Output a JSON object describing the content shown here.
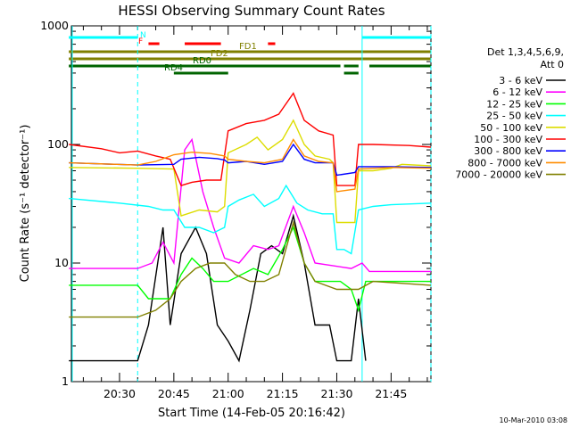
{
  "chart_data": {
    "type": "line",
    "title": "HESSI Observing Summary Count Rates",
    "xlabel": "Start Time (14-Feb-05 20:16:42)",
    "ylabel": "Count Rate (s⁻¹ detector⁻¹)",
    "yscale": "log",
    "ylim": [
      1,
      1000
    ],
    "xlim": [
      "20:16:42",
      "21:56:00"
    ],
    "x_ticks": [
      "20:30",
      "20:45",
      "21:00",
      "21:15",
      "21:30",
      "21:45"
    ],
    "y_ticks": [
      "1",
      "10",
      "100",
      "1000"
    ],
    "legend_placement": "right",
    "legend_header": [
      "Det 1,3,4,5,6,9,",
      "Att 0"
    ],
    "grid": false,
    "footer": "10-Mar-2010 03:08",
    "series": [
      {
        "name": "3 - 6 keV",
        "color": "#000000",
        "points": [
          [
            "20:16",
            1.5
          ],
          [
            "20:35",
            1.5
          ],
          [
            "20:38",
            3
          ],
          [
            "20:42",
            20
          ],
          [
            "20:44",
            3
          ],
          [
            "20:47",
            12
          ],
          [
            "20:51",
            20
          ],
          [
            "20:54",
            12
          ],
          [
            "20:57",
            3
          ],
          [
            "21:00",
            2.2
          ],
          [
            "21:03",
            1.5
          ],
          [
            "21:06",
            4
          ],
          [
            "21:09",
            12
          ],
          [
            "21:12",
            14
          ],
          [
            "21:15",
            12
          ],
          [
            "21:18",
            25
          ],
          [
            "21:21",
            10
          ],
          [
            "21:24",
            3
          ],
          [
            "21:28",
            3
          ],
          [
            "21:30",
            1.5
          ],
          [
            "21:34",
            1.5
          ],
          [
            "21:36",
            5
          ],
          [
            "21:38",
            1.5
          ]
        ]
      },
      {
        "name": "6 - 12 keV",
        "color": "#ff00ff",
        "points": [
          [
            "20:16",
            9
          ],
          [
            "20:35",
            9
          ],
          [
            "20:39",
            10
          ],
          [
            "20:42",
            15
          ],
          [
            "20:45",
            10
          ],
          [
            "20:48",
            90
          ],
          [
            "20:50",
            110
          ],
          [
            "20:53",
            40
          ],
          [
            "20:56",
            20
          ],
          [
            "20:59",
            11
          ],
          [
            "21:03",
            10
          ],
          [
            "21:07",
            14
          ],
          [
            "21:11",
            13
          ],
          [
            "21:14",
            14
          ],
          [
            "21:18",
            30
          ],
          [
            "21:21",
            18
          ],
          [
            "21:24",
            10
          ],
          [
            "21:34",
            9
          ],
          [
            "21:37",
            10
          ],
          [
            "21:39",
            8.5
          ],
          [
            "21:56",
            8.5
          ]
        ]
      },
      {
        "name": "12 - 25 keV",
        "color": "#00ff00",
        "points": [
          [
            "20:16",
            6.5
          ],
          [
            "20:35",
            6.5
          ],
          [
            "20:38",
            5
          ],
          [
            "20:44",
            5
          ],
          [
            "20:47",
            8
          ],
          [
            "20:50",
            11
          ],
          [
            "20:53",
            9
          ],
          [
            "20:56",
            7
          ],
          [
            "21:00",
            7
          ],
          [
            "21:07",
            9
          ],
          [
            "21:11",
            8
          ],
          [
            "21:15",
            13
          ],
          [
            "21:18",
            20
          ],
          [
            "21:21",
            10
          ],
          [
            "21:24",
            7
          ],
          [
            "21:31",
            7
          ],
          [
            "21:34",
            6
          ],
          [
            "21:36",
            4
          ],
          [
            "21:38",
            7
          ],
          [
            "21:56",
            7
          ]
        ]
      },
      {
        "name": "25 - 50 keV",
        "color": "#00ffff",
        "points": [
          [
            "20:16",
            35
          ],
          [
            "20:30",
            32
          ],
          [
            "20:38",
            30
          ],
          [
            "20:42",
            28
          ],
          [
            "20:45",
            28
          ],
          [
            "20:48",
            20
          ],
          [
            "20:52",
            20
          ],
          [
            "20:56",
            18
          ],
          [
            "20:59",
            20
          ],
          [
            "21:00",
            30
          ],
          [
            "21:03",
            34
          ],
          [
            "21:07",
            38
          ],
          [
            "21:10",
            30
          ],
          [
            "21:14",
            35
          ],
          [
            "21:16",
            45
          ],
          [
            "21:19",
            32
          ],
          [
            "21:22",
            28
          ],
          [
            "21:26",
            26
          ],
          [
            "21:29",
            26
          ],
          [
            "21:30",
            13
          ],
          [
            "21:32",
            13
          ],
          [
            "21:34",
            12
          ],
          [
            "21:36",
            28
          ],
          [
            "21:40",
            30
          ],
          [
            "21:45",
            31
          ],
          [
            "21:56",
            32
          ]
        ]
      },
      {
        "name": "50 - 100 keV",
        "color": "#dddd00",
        "points": [
          [
            "20:16",
            64
          ],
          [
            "20:35",
            63
          ],
          [
            "20:45",
            62
          ],
          [
            "20:47",
            25
          ],
          [
            "20:52",
            28
          ],
          [
            "20:57",
            27
          ],
          [
            "20:59",
            30
          ],
          [
            "21:00",
            85
          ],
          [
            "21:05",
            100
          ],
          [
            "21:08",
            115
          ],
          [
            "21:11",
            90
          ],
          [
            "21:15",
            110
          ],
          [
            "21:18",
            160
          ],
          [
            "21:21",
            100
          ],
          [
            "21:24",
            80
          ],
          [
            "21:28",
            75
          ],
          [
            "21:29",
            70
          ],
          [
            "21:30",
            22
          ],
          [
            "21:34",
            22
          ],
          [
            "21:35",
            22
          ],
          [
            "21:36",
            60
          ],
          [
            "21:40",
            60
          ],
          [
            "21:45",
            63
          ],
          [
            "21:48",
            68
          ],
          [
            "21:56",
            66
          ]
        ]
      },
      {
        "name": "100 - 300 keV",
        "color": "#ff0000",
        "points": [
          [
            "20:16",
            100
          ],
          [
            "20:25",
            92
          ],
          [
            "20:30",
            85
          ],
          [
            "20:35",
            88
          ],
          [
            "20:40",
            80
          ],
          [
            "20:44",
            75
          ],
          [
            "20:47",
            45
          ],
          [
            "20:50",
            48
          ],
          [
            "20:54",
            50
          ],
          [
            "20:58",
            50
          ],
          [
            "21:00",
            130
          ],
          [
            "21:05",
            150
          ],
          [
            "21:10",
            160
          ],
          [
            "21:14",
            180
          ],
          [
            "21:18",
            270
          ],
          [
            "21:21",
            160
          ],
          [
            "21:25",
            130
          ],
          [
            "21:29",
            120
          ],
          [
            "21:30",
            45
          ],
          [
            "21:35",
            45
          ],
          [
            "21:36",
            100
          ],
          [
            "21:40",
            100
          ],
          [
            "21:50",
            98
          ],
          [
            "21:56",
            95
          ]
        ]
      },
      {
        "name": "300 - 800 keV",
        "color": "#0000ff",
        "points": [
          [
            "20:16",
            70
          ],
          [
            "20:35",
            67
          ],
          [
            "20:45",
            68
          ],
          [
            "20:47",
            75
          ],
          [
            "20:52",
            78
          ],
          [
            "20:57",
            76
          ],
          [
            "20:59",
            74
          ],
          [
            "21:00",
            70
          ],
          [
            "21:05",
            72
          ],
          [
            "21:10",
            68
          ],
          [
            "21:15",
            72
          ],
          [
            "21:18",
            100
          ],
          [
            "21:21",
            75
          ],
          [
            "21:24",
            70
          ],
          [
            "21:29",
            70
          ],
          [
            "21:30",
            55
          ],
          [
            "21:35",
            58
          ],
          [
            "21:36",
            65
          ],
          [
            "21:45",
            65
          ],
          [
            "21:56",
            64
          ]
        ]
      },
      {
        "name": "800 - 7000 keV",
        "color": "#ff8c00",
        "points": [
          [
            "20:16",
            70
          ],
          [
            "20:35",
            67
          ],
          [
            "20:40",
            72
          ],
          [
            "20:45",
            82
          ],
          [
            "20:50",
            86
          ],
          [
            "20:55",
            84
          ],
          [
            "20:59",
            80
          ],
          [
            "21:00",
            75
          ],
          [
            "21:05",
            72
          ],
          [
            "21:10",
            70
          ],
          [
            "21:15",
            75
          ],
          [
            "21:18",
            110
          ],
          [
            "21:21",
            80
          ],
          [
            "21:25",
            72
          ],
          [
            "21:29",
            70
          ],
          [
            "21:30",
            40
          ],
          [
            "21:35",
            42
          ],
          [
            "21:36",
            62
          ],
          [
            "21:45",
            64
          ],
          [
            "21:56",
            63
          ]
        ]
      },
      {
        "name": "7000 - 20000 keV",
        "color": "#808000",
        "points": [
          [
            "20:16",
            3.5
          ],
          [
            "20:35",
            3.5
          ],
          [
            "20:40",
            4
          ],
          [
            "20:44",
            5
          ],
          [
            "20:47",
            7
          ],
          [
            "20:51",
            9
          ],
          [
            "20:55",
            10
          ],
          [
            "20:59",
            10
          ],
          [
            "21:02",
            8
          ],
          [
            "21:06",
            7
          ],
          [
            "21:10",
            7
          ],
          [
            "21:14",
            8
          ],
          [
            "21:18",
            22
          ],
          [
            "21:21",
            10
          ],
          [
            "21:24",
            7
          ],
          [
            "21:30",
            6
          ],
          [
            "21:36",
            6
          ],
          [
            "21:40",
            7
          ],
          [
            "21:56",
            6.5
          ]
        ]
      }
    ],
    "flag_bars": [
      {
        "label": "N",
        "color": "#00ffff",
        "segments": [
          [
            "20:16",
            "20:35"
          ],
          [
            "21:37",
            "21:56"
          ]
        ]
      },
      {
        "label": "F",
        "color": "#ff0000",
        "segments": [
          [
            "20:38",
            "20:41"
          ],
          [
            "20:48",
            "20:58"
          ],
          [
            "21:11",
            "21:13"
          ]
        ]
      },
      {
        "label": "FD1",
        "color": "#808000",
        "segments": [
          [
            "20:16",
            "21:56"
          ]
        ]
      },
      {
        "label": "FD2",
        "color": "#808000",
        "segments": [
          [
            "20:16",
            "21:56"
          ]
        ]
      },
      {
        "label": "RD0",
        "color": "#006400",
        "segments": [
          [
            "20:16",
            "21:31"
          ],
          [
            "21:32",
            "21:36"
          ],
          [
            "21:39",
            "21:56"
          ]
        ]
      },
      {
        "label": "RD4",
        "color": "#006400",
        "segments": [
          [
            "20:45",
            "21:00"
          ],
          [
            "21:32",
            "21:36"
          ]
        ]
      }
    ]
  }
}
